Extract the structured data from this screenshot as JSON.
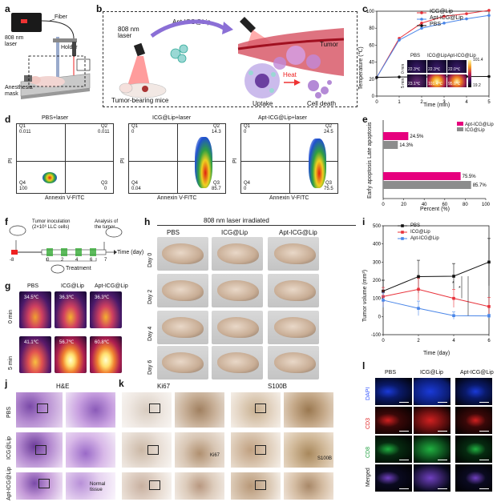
{
  "panels": {
    "a": "a",
    "b": "b",
    "c": "c",
    "d": "d",
    "e": "e",
    "f": "f",
    "g": "g",
    "h": "h",
    "i": "i",
    "j": "j",
    "k": "k",
    "l": "l"
  },
  "a": {
    "laser": "808 nm\nlaser",
    "fiber": "Fiber",
    "holder": "Holder",
    "mask": "Anesthesia\nmask"
  },
  "b": {
    "laser": "808 nm\nlaser",
    "agent": "Apt-ICG@Lip",
    "mice": "Tumor-bearing mice",
    "tumor": "Tumor",
    "heat": "Heat",
    "uptake": "Uptake",
    "death": "Cell death"
  },
  "c": {
    "ylabel": "Temperature (℃)",
    "xlabel": "Time (min)",
    "legend": [
      "ICG@Lip",
      "Apt-ICG@Lip",
      "PBS"
    ],
    "inset_cols": [
      "PBS",
      "ICG@Lip",
      "Apt-ICG@Lip"
    ],
    "inset_rows": [
      "0 min",
      "5 min"
    ],
    "inset_temps": [
      [
        "22.3℃",
        "22.3℃",
        "22.0℃"
      ],
      [
        "23.1℃",
        "101.4℃",
        "95.0℃"
      ]
    ],
    "inset_scale": [
      "101.4",
      "19.2"
    ]
  },
  "chart_data": [
    {
      "type": "line",
      "title": "",
      "xlabel": "Time (min)",
      "ylabel": "Temperature (℃)",
      "xlim": [
        0,
        5
      ],
      "ylim": [
        0,
        100
      ],
      "x": [
        0,
        1,
        2,
        3,
        4,
        5
      ],
      "xticks": [
        "0",
        "1",
        "2",
        "3",
        "4",
        "5"
      ],
      "yticks": [
        "0",
        "20",
        "40",
        "60",
        "80",
        "100"
      ],
      "series": [
        {
          "name": "ICG@Lip",
          "color": "#e8313a",
          "values": [
            22,
            68,
            86,
            94,
            97,
            101
          ]
        },
        {
          "name": "Apt-ICG@Lip",
          "color": "#4a86e8",
          "values": [
            22,
            66,
            80,
            86,
            91,
            95
          ]
        },
        {
          "name": "PBS",
          "color": "#111111",
          "values": [
            22,
            22.5,
            22.5,
            22.8,
            23,
            23.1
          ]
        }
      ]
    },
    {
      "type": "bar",
      "title": "",
      "xlabel": "Percent (%)",
      "ylabel": "",
      "xlim": [
        0,
        100
      ],
      "categories": [
        "Late apoptosis",
        "Early apoptosis"
      ],
      "xticks": [
        "0",
        "20",
        "40",
        "60",
        "80",
        "100"
      ],
      "series": [
        {
          "name": "Apt-ICG@Lip",
          "color": "#e6007e",
          "values": [
            24.5,
            75.5
          ],
          "labels": [
            "24.5%",
            "75.5%"
          ]
        },
        {
          "name": "ICG@Lip",
          "color": "#8c8c8c",
          "values": [
            14.3,
            85.7
          ],
          "labels": [
            "14.3%",
            "85.7%"
          ]
        }
      ]
    },
    {
      "type": "line",
      "title": "",
      "xlabel": "Time (day)",
      "ylabel": "Tumor volume (mm³)",
      "xlim": [
        0,
        6
      ],
      "ylim": [
        -100,
        500
      ],
      "x": [
        0,
        2,
        4,
        6
      ],
      "xticks": [
        "0",
        "2",
        "4",
        "6"
      ],
      "yticks": [
        "-100",
        "0",
        "100",
        "200",
        "300",
        "400",
        "500"
      ],
      "annotations": [
        "*",
        "*"
      ],
      "series": [
        {
          "name": "PBS",
          "color": "#111111",
          "values": [
            140,
            220,
            222,
            300
          ],
          "err": [
            60,
            90,
            70,
            130
          ]
        },
        {
          "name": "ICG@Lip",
          "color": "#e8313a",
          "values": [
            110,
            150,
            100,
            55
          ],
          "err": [
            50,
            60,
            50,
            50
          ]
        },
        {
          "name": "Apt-ICG@Lip",
          "color": "#4a86e8",
          "values": [
            90,
            45,
            5,
            3
          ],
          "err": [
            40,
            40,
            20,
            10
          ]
        }
      ]
    }
  ],
  "d": {
    "titles": [
      "PBS+laser",
      "ICG@Lip+laser",
      "Apt-ICG@Lip+laser"
    ],
    "xlabel": "Annexin V-FITC",
    "ylabel": "PI",
    "quads": [
      {
        "q1": "0.011",
        "q2": "0.011",
        "q3": "0",
        "q4": "100"
      },
      {
        "q1": "0",
        "q2": "14.3",
        "q3": "85.7",
        "q4": "0.04"
      },
      {
        "q1": "0",
        "q2": "24.5",
        "q3": "75.5",
        "q4": "0"
      }
    ],
    "qnames": [
      "Q1",
      "Q2",
      "Q3",
      "Q4"
    ]
  },
  "f": {
    "inoc": "Tumor inoculation\n(2×10⁶ LLC cells)",
    "analysis": "Analysis of\nthe tumor",
    "treatment": "Treatment",
    "time": "Time (day)",
    "ticks": [
      "-8",
      "0",
      "2",
      "4",
      "6",
      "7"
    ]
  },
  "g": {
    "cols": [
      "PBS",
      "ICG@Lip",
      "Apt-ICG@Lip"
    ],
    "rows": [
      "0 min",
      "5 min"
    ],
    "temps": [
      [
        "34.5℃",
        "36.3℃",
        "36.3℃"
      ],
      [
        "41.1℃",
        "56.7℃",
        "60.8℃"
      ]
    ]
  },
  "h": {
    "title": "808 nm laser irradiated",
    "cols": [
      "PBS",
      "ICG@Lip",
      "Apt-ICG@Lip"
    ],
    "rows": [
      "Day 0",
      "Day 2",
      "Day 4",
      "Day 6"
    ]
  },
  "j": {
    "title": "H&E",
    "rows": [
      "PBS",
      "ICG@Lip",
      "Apt-ICG@Lip"
    ],
    "note": "Normal\ntissue"
  },
  "k": {
    "titles": [
      "Ki67",
      "S100B"
    ],
    "labels": [
      "Ki67",
      "S100B"
    ]
  },
  "l": {
    "cols": [
      "PBS",
      "ICG@Lip",
      "Apt-ICG@Lip"
    ],
    "rows": [
      "DAPI",
      "CD3",
      "CD8",
      "Merged"
    ],
    "rowcolors": [
      "#3355ff",
      "#e02020",
      "#20a040",
      "#222222"
    ]
  }
}
